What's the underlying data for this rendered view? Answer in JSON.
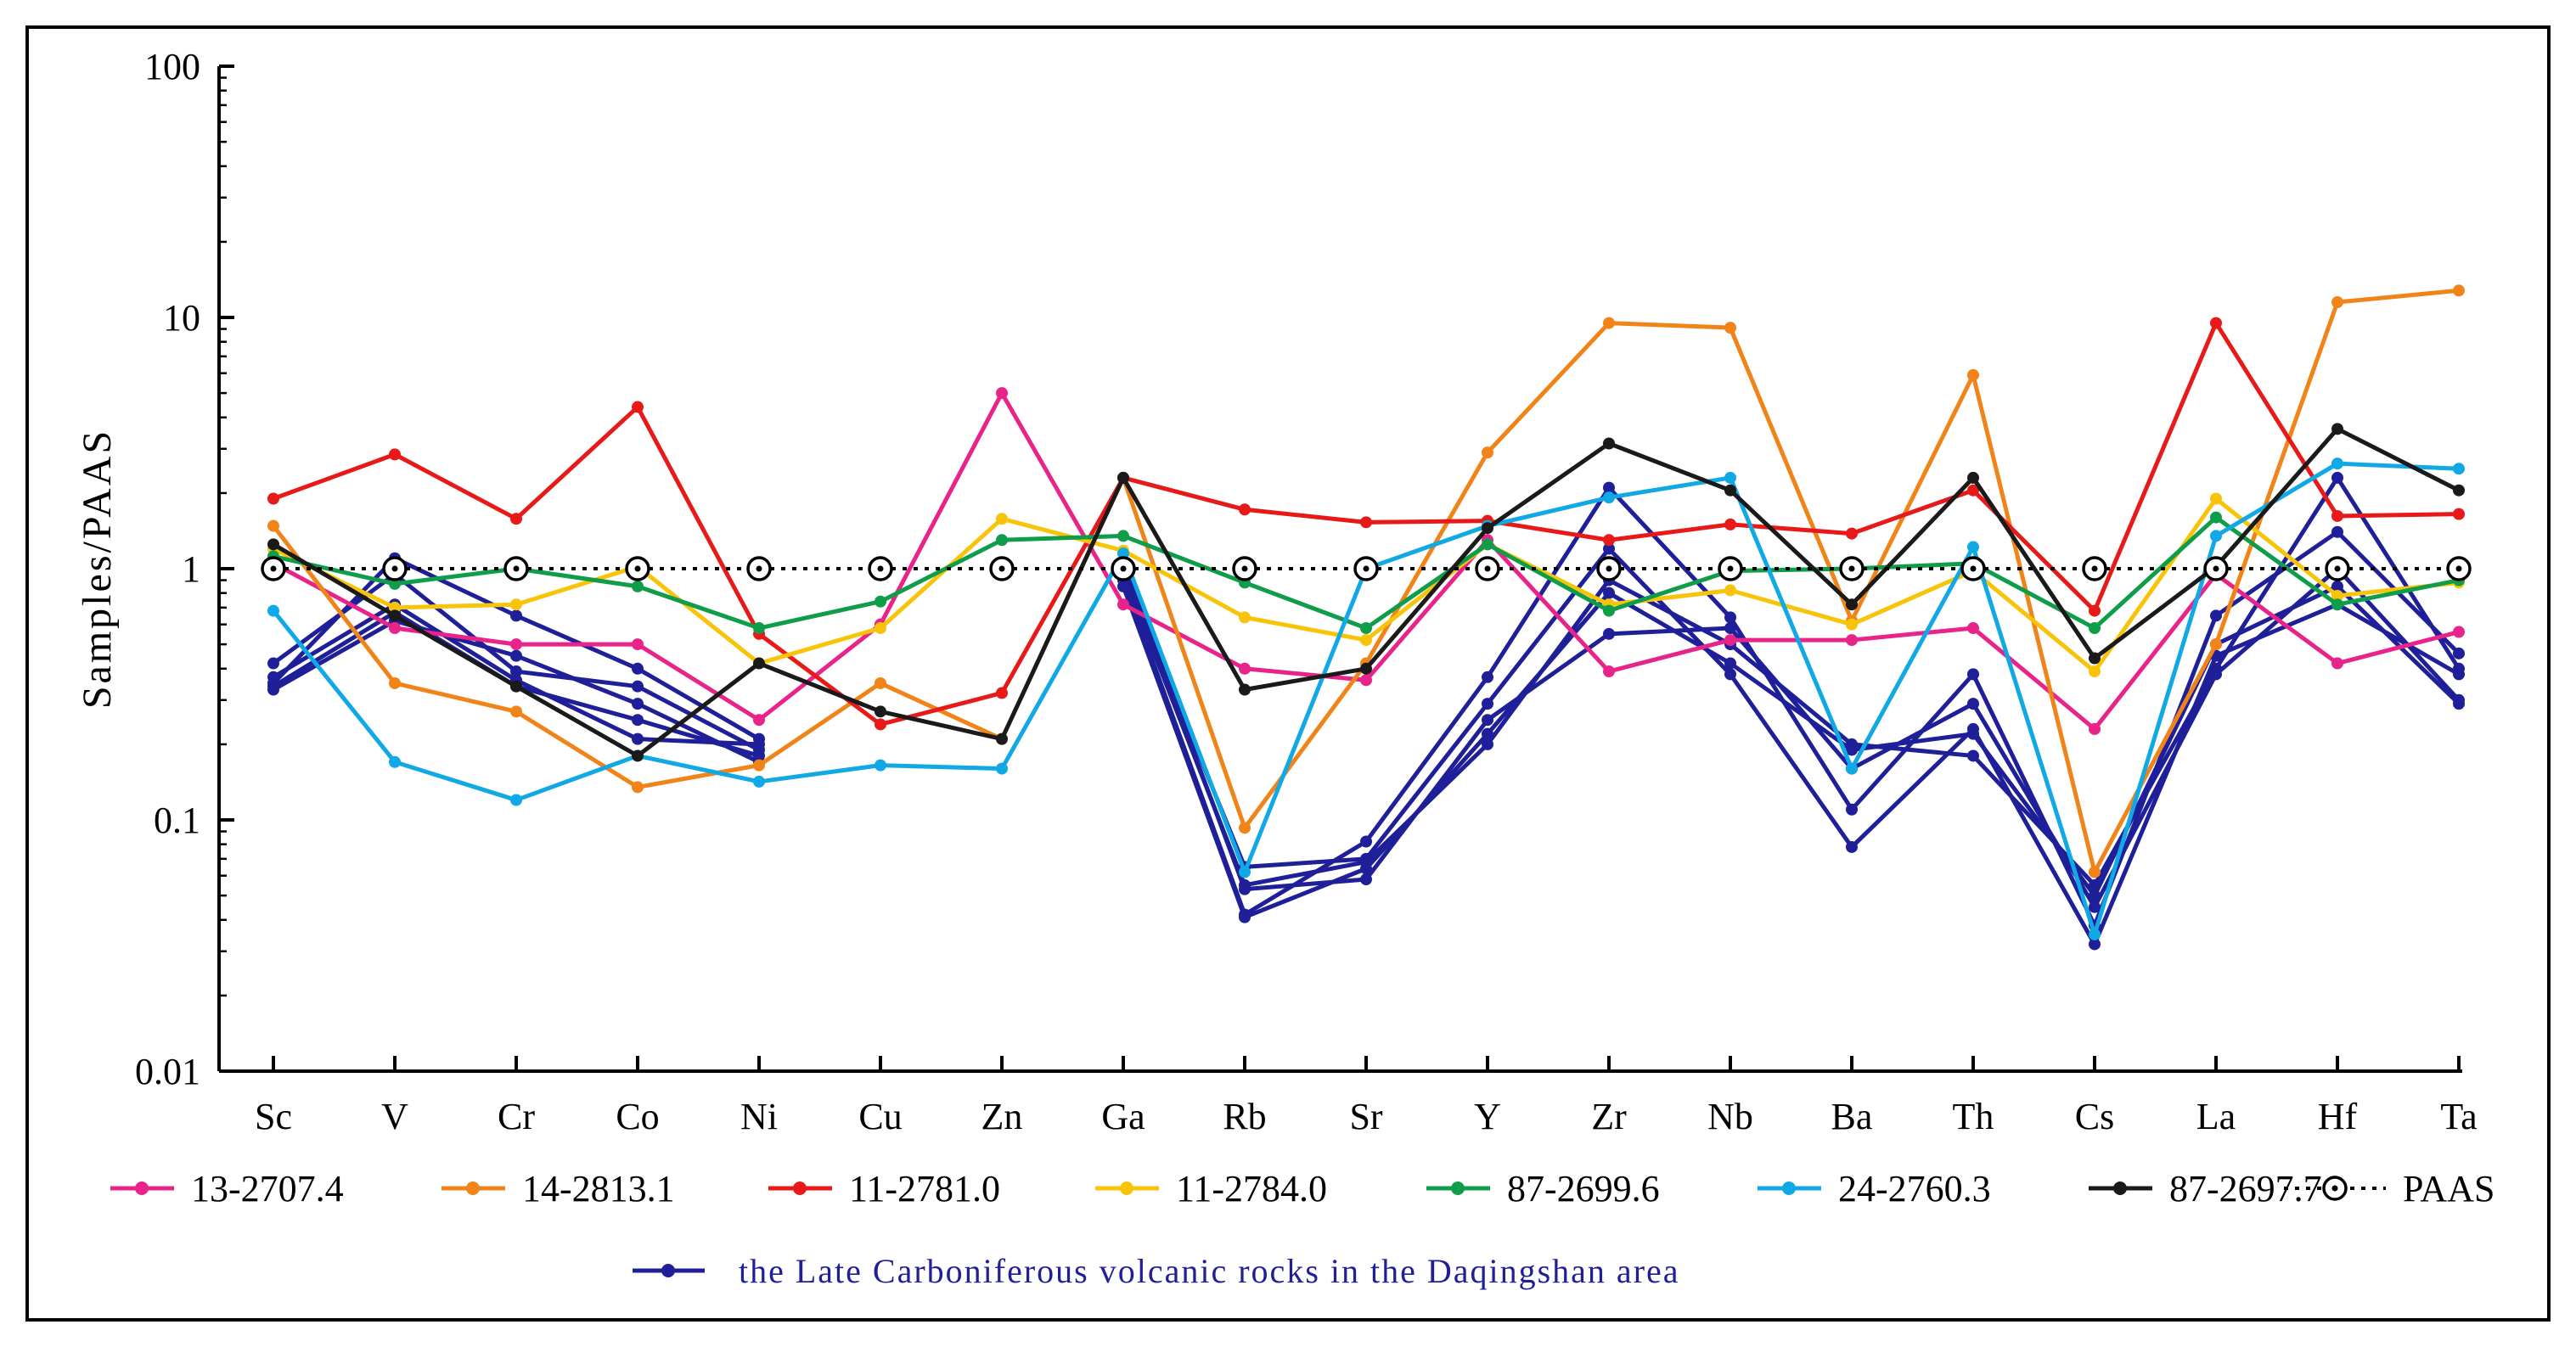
{
  "chart_data": {
    "type": "line",
    "y_scale": "log",
    "ylabel": "Samples/PAAS",
    "ylim": [
      0.01,
      100
    ],
    "y_ticks": [
      "0.01",
      "0.1",
      "1",
      "10",
      "100"
    ],
    "categories": [
      "Sc",
      "V",
      "Cr",
      "Co",
      "Ni",
      "Cu",
      "Zn",
      "Ga",
      "Rb",
      "Sr",
      "Y",
      "Zr",
      "Nb",
      "Ba",
      "Th",
      "Cs",
      "La",
      "Hf",
      "Ta"
    ],
    "series": [
      {
        "name": "13-2707.4",
        "color": "#e8248a",
        "values": [
          1.05,
          0.58,
          0.5,
          0.5,
          0.25,
          0.6,
          5.0,
          0.72,
          0.4,
          0.36,
          1.3,
          0.39,
          0.52,
          0.52,
          0.58,
          0.23,
          0.95,
          0.42,
          0.56
        ]
      },
      {
        "name": "14-2813.1",
        "color": "#f08419",
        "values": [
          1.48,
          0.35,
          0.27,
          0.135,
          0.165,
          0.35,
          0.21,
          2.3,
          0.093,
          0.42,
          2.9,
          9.5,
          9.1,
          0.62,
          5.9,
          0.062,
          0.5,
          11.5,
          12.8
        ]
      },
      {
        "name": "11-2781.0",
        "color": "#e81919",
        "values": [
          1.9,
          2.85,
          1.58,
          4.4,
          0.55,
          0.24,
          0.32,
          2.3,
          1.72,
          1.53,
          1.55,
          1.3,
          1.5,
          1.38,
          2.05,
          0.68,
          9.5,
          1.62,
          1.65
        ]
      },
      {
        "name": "11-2784.0",
        "color": "#f7c40a",
        "values": [
          1.2,
          0.7,
          0.72,
          1.02,
          0.42,
          0.58,
          1.58,
          1.18,
          0.64,
          0.52,
          1.25,
          0.72,
          0.82,
          0.6,
          0.98,
          0.39,
          1.9,
          0.78,
          0.88
        ]
      },
      {
        "name": "87-2699.6",
        "color": "#0f9d4a",
        "values": [
          1.12,
          0.87,
          1.0,
          0.85,
          0.58,
          0.74,
          1.3,
          1.35,
          0.88,
          0.58,
          1.25,
          0.68,
          0.98,
          1.0,
          1.05,
          0.58,
          1.6,
          0.72,
          0.9
        ]
      },
      {
        "name": "24-2760.3",
        "color": "#11a8e6",
        "values": [
          0.68,
          0.17,
          0.12,
          0.18,
          0.142,
          0.165,
          0.16,
          1.15,
          0.062,
          1.0,
          1.48,
          1.92,
          2.3,
          0.16,
          1.22,
          0.035,
          1.35,
          2.62,
          2.5
        ]
      },
      {
        "name": "87-2697.7",
        "color": "#1a1a1a",
        "values": [
          1.25,
          0.65,
          0.34,
          0.18,
          0.42,
          0.27,
          0.21,
          2.3,
          0.33,
          0.4,
          1.45,
          3.15,
          2.05,
          0.72,
          2.3,
          0.44,
          1.02,
          3.6,
          2.05
        ]
      },
      {
        "name": "PAAS",
        "color": "#000000",
        "style": "dotted-open-circle",
        "values": [
          1,
          1,
          1,
          1,
          1,
          1,
          1,
          1,
          1,
          1,
          1,
          1,
          1,
          1,
          1,
          1,
          1,
          1,
          1
        ]
      }
    ],
    "reference_group": {
      "name": "the Late Carboniferous volcanic rocks in the Daqingshan area",
      "color": "#1f1f99",
      "segments_a": [
        [
          0.35,
          1.1,
          0.65,
          0.4,
          0.21
        ],
        [
          0.33,
          0.62,
          0.45,
          0.29,
          0.17
        ],
        [
          0.42,
          0.95,
          0.39,
          0.34,
          0.19
        ],
        [
          0.37,
          0.72,
          0.36,
          0.21,
          0.2
        ],
        [
          0.34,
          0.67,
          0.34,
          0.25,
          0.18
        ]
      ],
      "segments_b": [
        [
          0.95,
          0.055,
          0.068,
          0.2,
          0.9,
          0.5,
          0.2,
          0.18,
          0.055,
          0.4,
          2.3,
          0.4
        ],
        [
          0.9,
          0.042,
          0.082,
          0.37,
          2.1,
          0.64,
          0.11,
          0.38,
          0.038,
          0.65,
          1.4,
          0.46
        ],
        [
          1.0,
          0.065,
          0.07,
          0.29,
          1.2,
          0.38,
          0.078,
          0.23,
          0.032,
          0.45,
          0.72,
          0.38
        ],
        [
          1.05,
          0.053,
          0.058,
          0.25,
          0.55,
          0.58,
          0.16,
          0.29,
          0.045,
          0.38,
          1.0,
          0.3
        ],
        [
          0.85,
          0.041,
          0.064,
          0.22,
          0.8,
          0.42,
          0.19,
          0.22,
          0.05,
          0.5,
          0.85,
          0.29
        ]
      ]
    }
  }
}
